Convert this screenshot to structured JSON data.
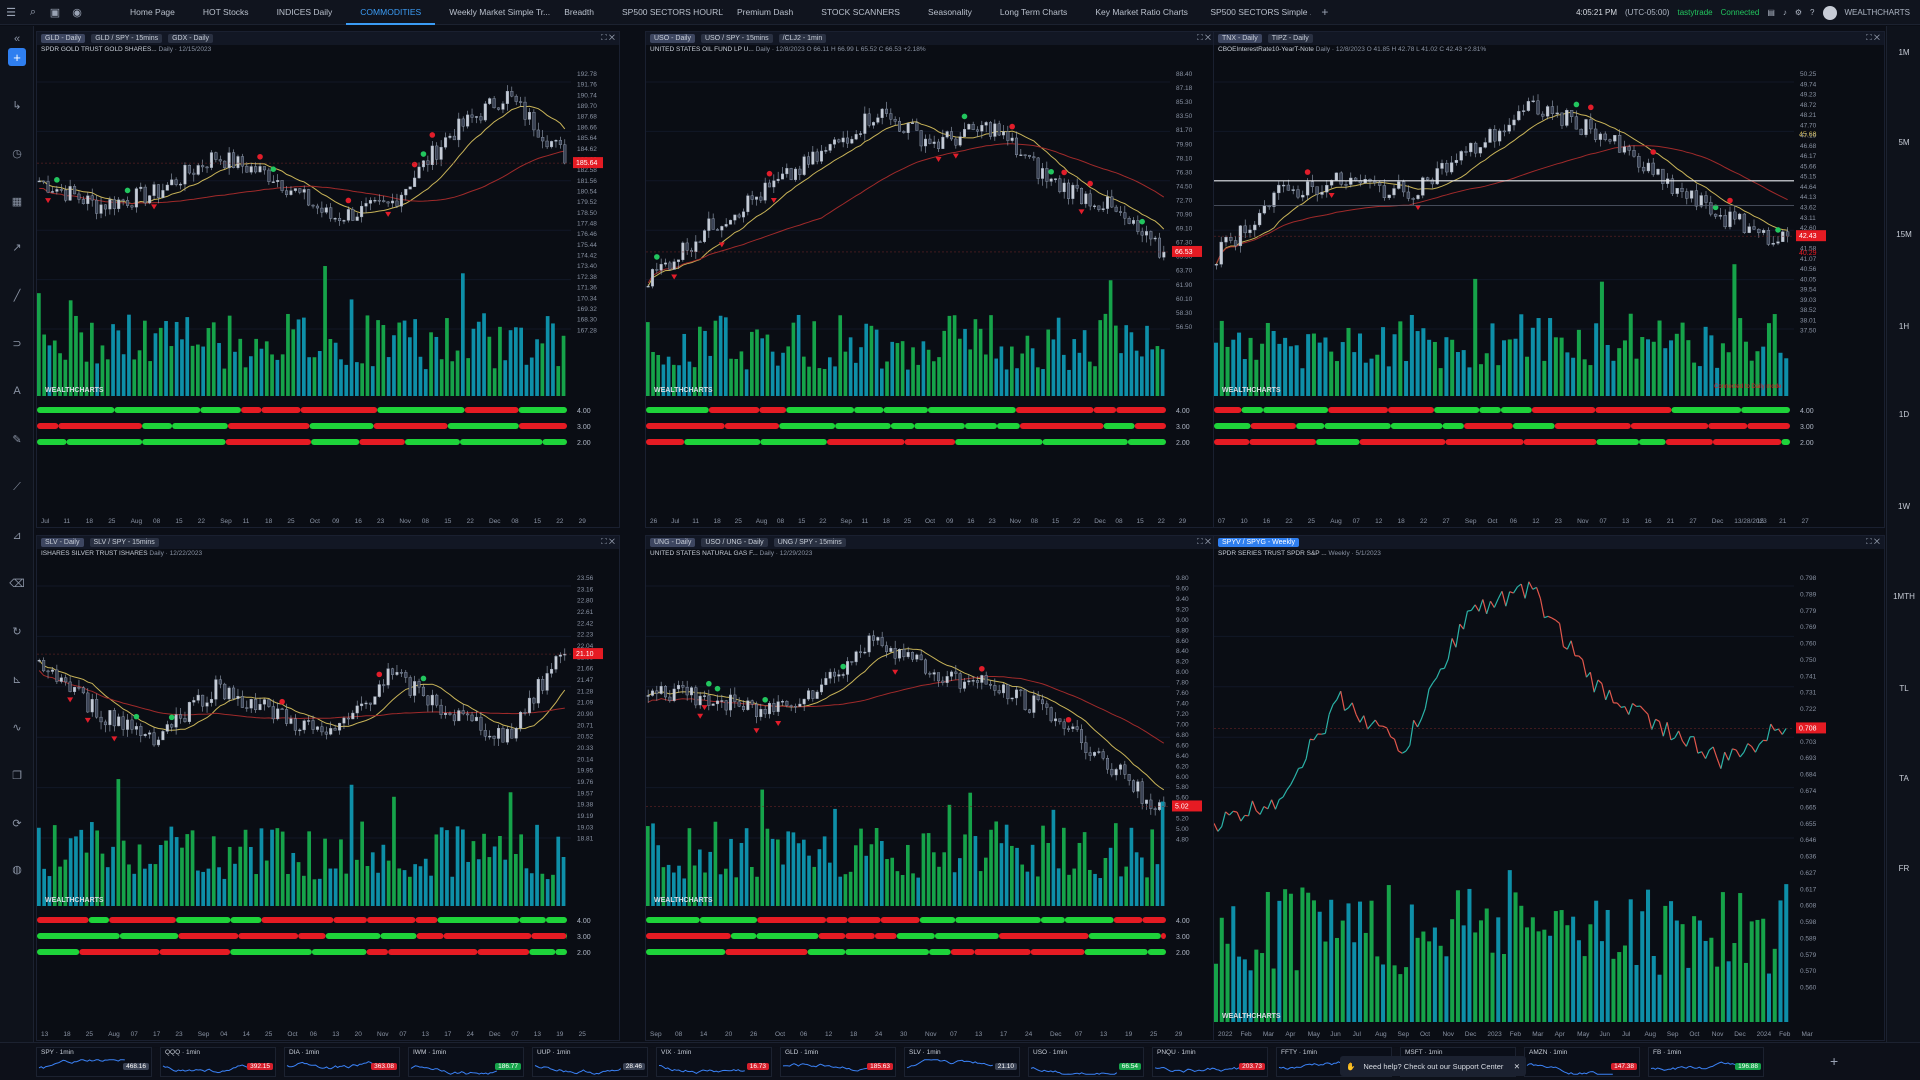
{
  "topbar": {
    "tabs": [
      "Home Page",
      "HOT Stocks",
      "INDICES Daily",
      "COMMODITIES",
      "Weekly Market Simple Tr...",
      "Breadth",
      "SP500 SECTORS HOURLY",
      "Premium Dash",
      "STOCK SCANNERS",
      "Seasonality",
      "Long Term Charts",
      "Key Market Ratio Charts",
      "SP500 SECTORS Simple ..."
    ],
    "active_tab": "COMMODITIES",
    "add_tab": "+",
    "time": "4:05:21 PM",
    "timezone": "(UTC-05:00)",
    "broker": "tastytrade",
    "status": "Connected",
    "brand": "WEALTHCHARTS"
  },
  "rightbar": {
    "labels": [
      "1M",
      "5M",
      "15M",
      "1H",
      "1D",
      "1W",
      "1MTH",
      "TL",
      "TA",
      "FR"
    ]
  },
  "panels": [
    {
      "tabs": [
        "GLD - Daily",
        "GLD / SPY - 15mins",
        "GDX - Daily"
      ],
      "subtitle": "SPDR GOLD TRUST GOLD SHARES...",
      "interval": "Daily · 12/15/2023",
      "prices": [
        "192.78",
        "191.76",
        "190.74",
        "189.70",
        "187.68",
        "186.66",
        "185.64",
        "184.62",
        "183.60",
        "182.58",
        "181.56",
        "180.54",
        "179.52",
        "178.50",
        "177.48",
        "176.46",
        "175.44",
        "174.42",
        "173.40",
        "172.38",
        "171.36",
        "170.34",
        "169.32",
        "168.30",
        "167.28"
      ],
      "last_price": "185.64",
      "dates": [
        "Jul",
        "11",
        "18",
        "25",
        "Aug",
        "08",
        "15",
        "22",
        "Sep",
        "11",
        "18",
        "25",
        "Oct",
        "09",
        "16",
        "23",
        "Nov",
        "08",
        "15",
        "22",
        "Dec",
        "08",
        "15",
        "22",
        "29"
      ],
      "osc": [
        "4.00",
        "3.00",
        "2.00"
      ],
      "logo": "WEALTHCHARTS"
    },
    {
      "tabs": [
        "USO - Daily",
        "USO / SPY - 15mins",
        "/CLJ2 - 1min"
      ],
      "subtitle": "UNITED STATES OIL FUND LP U...",
      "interval": "Daily · 12/8/2023 O 66.11 H 66.99 L 65.52 C 66.53 +2.18%",
      "prices": [
        "88.40",
        "87.18",
        "85.30",
        "83.50",
        "81.70",
        "79.90",
        "78.10",
        "76.30",
        "74.50",
        "72.70",
        "70.90",
        "69.10",
        "67.30",
        "65.50",
        "63.70",
        "61.90",
        "60.10",
        "58.30",
        "56.50"
      ],
      "last_price": "66.53",
      "dates": [
        "26",
        "Jul",
        "11",
        "18",
        "25",
        "Aug",
        "08",
        "15",
        "22",
        "Sep",
        "11",
        "18",
        "25",
        "Oct",
        "09",
        "16",
        "23",
        "Nov",
        "08",
        "15",
        "22",
        "Dec",
        "08",
        "15",
        "22",
        "29"
      ],
      "osc": [
        "4.00",
        "3.00",
        "2.00"
      ],
      "logo": "WEALTHCHARTS"
    },
    {
      "tabs": [
        "TNX - Daily",
        "TIPZ - Daily"
      ],
      "subtitle": "CBOEInterestRate10-YearT-Note",
      "interval": "Daily · 12/8/2023 O 41.85 H 42.78 L 41.02 C 42.43 +2.81%",
      "prices": [
        "50.25",
        "49.74",
        "49.23",
        "48.72",
        "48.21",
        "47.70",
        "47.19",
        "46.68",
        "46.17",
        "45.66",
        "45.15",
        "44.64",
        "44.13",
        "43.62",
        "43.11",
        "42.60",
        "42.09",
        "41.58",
        "41.07",
        "40.56",
        "40.05",
        "39.54",
        "39.03",
        "38.52",
        "38.01",
        "37.50"
      ],
      "last_price": "42.43",
      "tag_high": "45.68",
      "tag_low": "40.29",
      "dates": [
        "07",
        "10",
        "16",
        "22",
        "25",
        "Aug",
        "07",
        "12",
        "18",
        "22",
        "27",
        "Sep",
        "Oct",
        "06",
        "12",
        "23",
        "Nov",
        "07",
        "13",
        "16",
        "21",
        "27",
        "Dec",
        "13/28/2023",
        "15",
        "21",
        "27"
      ],
      "osc": [
        "4.00",
        "3.00",
        "2.00"
      ],
      "note": "Connected to Daily mode",
      "logo": "WEALTHCHARTS"
    },
    {
      "tabs": [
        "SLV - Daily",
        "SLV / SPY - 15mins"
      ],
      "subtitle": "ISHARES SILVER TRUST ISHARES",
      "interval": "Daily · 12/22/2023",
      "prices": [
        "23.56",
        "23.16",
        "22.80",
        "22.61",
        "22.42",
        "22.23",
        "22.04",
        "21.85",
        "21.66",
        "21.47",
        "21.28",
        "21.09",
        "20.90",
        "20.71",
        "20.52",
        "20.33",
        "20.14",
        "19.95",
        "19.76",
        "19.57",
        "19.38",
        "19.19",
        "19.03",
        "18.81"
      ],
      "last_price": "21.10",
      "dates": [
        "13",
        "18",
        "25",
        "Aug",
        "07",
        "17",
        "23",
        "Sep",
        "04",
        "14",
        "25",
        "Oct",
        "06",
        "13",
        "20",
        "Nov",
        "07",
        "13",
        "17",
        "24",
        "Dec",
        "07",
        "13",
        "19",
        "25"
      ],
      "osc": [
        "4.00",
        "3.00",
        "2.00"
      ],
      "logo": "WEALTHCHARTS"
    },
    {
      "tabs": [
        "UNG - Daily",
        "USO / UNG - Daily",
        "UNG / SPY - 15mins"
      ],
      "subtitle": "UNITED STATES NATURAL GAS F...",
      "interval": "Daily · 12/29/2023",
      "prices": [
        "9.80",
        "9.60",
        "9.40",
        "9.20",
        "9.00",
        "8.80",
        "8.60",
        "8.40",
        "8.20",
        "8.00",
        "7.80",
        "7.60",
        "7.40",
        "7.20",
        "7.00",
        "6.80",
        "6.60",
        "6.40",
        "6.20",
        "6.00",
        "5.80",
        "5.60",
        "5.40",
        "5.20",
        "5.00",
        "4.80"
      ],
      "last_price": "5.02",
      "dates": [
        "Sep",
        "08",
        "14",
        "20",
        "26",
        "Oct",
        "06",
        "12",
        "18",
        "24",
        "30",
        "Nov",
        "07",
        "13",
        "17",
        "24",
        "Dec",
        "07",
        "13",
        "19",
        "25",
        "29"
      ],
      "osc": [
        "4.00",
        "3.00",
        "2.00"
      ],
      "logo": "WEALTHCHARTS"
    },
    {
      "tabs": [
        "SPYV / SPYG - Weekly"
      ],
      "subtitle": "SPDR SERIES TRUST SPDR S&P ...",
      "interval": "Weekly · 5/1/2023",
      "prices": [
        "0.798",
        "0.789",
        "0.779",
        "0.769",
        "0.760",
        "0.750",
        "0.741",
        "0.731",
        "0.722",
        "0.712",
        "0.703",
        "0.693",
        "0.684",
        "0.674",
        "0.665",
        "0.655",
        "0.646",
        "0.636",
        "0.627",
        "0.617",
        "0.608",
        "0.598",
        "0.589",
        "0.579",
        "0.570",
        "0.560"
      ],
      "last_price": "0.708",
      "dates": [
        "2022",
        "Feb",
        "Mar",
        "Apr",
        "May",
        "Jun",
        "Jul",
        "Aug",
        "Sep",
        "Oct",
        "Nov",
        "Dec",
        "2023",
        "Feb",
        "Mar",
        "Apr",
        "May",
        "Jun",
        "Jul",
        "Aug",
        "Sep",
        "Oct",
        "Nov",
        "Dec",
        "2024",
        "Feb",
        "Mar"
      ],
      "logo": "WEALTHCHARTS"
    }
  ],
  "watchlist": [
    {
      "name": "SPY · 1min",
      "price": "468.16",
      "color": "#3a4254"
    },
    {
      "name": "QQQ · 1min",
      "price": "392.15",
      "color": "#d61f2c"
    },
    {
      "name": "DIA · 1min",
      "price": "363.08",
      "color": "#d61f2c"
    },
    {
      "name": "IWM · 1min",
      "price": "186.77",
      "color": "#16a34a"
    },
    {
      "name": "UUP · 1min",
      "price": "28.46",
      "color": "#3a4254"
    },
    {
      "name": "VIX · 1min",
      "price": "16.73",
      "color": "#d61f2c"
    },
    {
      "name": "GLD · 1min",
      "price": "185.63",
      "color": "#d61f2c"
    },
    {
      "name": "SLV · 1min",
      "price": "21.10",
      "color": "#3a4254"
    },
    {
      "name": "USO · 1min",
      "price": "66.54",
      "color": "#16a34a"
    },
    {
      "name": "PNQU · 1min",
      "price": "203.73",
      "color": "#d61f2c"
    },
    {
      "name": "FFTY · 1min",
      "price": "",
      "color": "#3a4254"
    },
    {
      "name": "MSFT · 1min",
      "price": "374.88",
      "color": "#16a34a"
    },
    {
      "name": "AMZN · 1min",
      "price": "147.38",
      "color": "#d61f2c"
    },
    {
      "name": "FB · 1min",
      "price": "196.88",
      "color": "#16a34a"
    }
  ],
  "help": {
    "text": "Need help? Check out our Support Center"
  },
  "colors": {
    "up": "#22c55e",
    "down": "#e11d2a",
    "volume_up": "#16a34a",
    "volume_down": "#0e8fa8",
    "ma_yellow": "#c9b458",
    "ma_red": "#a02a2a"
  }
}
